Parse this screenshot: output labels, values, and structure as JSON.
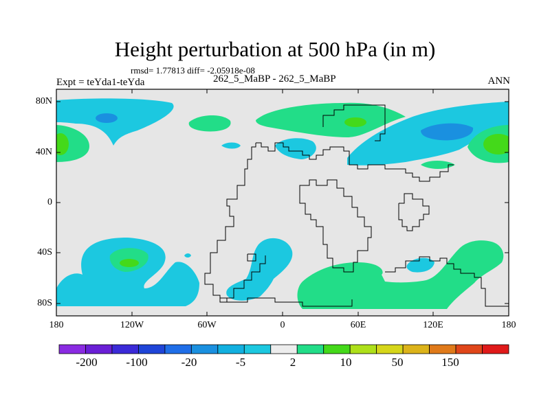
{
  "title": "Height perturbation at 500 hPa (in m)",
  "stats": "rmsd= 1.77813 diff= -2.05918e-08",
  "expt": "Expt = teYda1-teYda",
  "case": "262_5_MaBP - 262_5_MaBP",
  "season": "ANN",
  "lat_labels": [
    "80N",
    "40N",
    "0",
    "40S",
    "80S"
  ],
  "lon_labels": [
    "180",
    "120W",
    "60W",
    "0",
    "60E",
    "120E",
    "180"
  ],
  "colorbar": {
    "colors": [
      "#8a2be2",
      "#6a1fd6",
      "#3b2ad8",
      "#1f45d8",
      "#1f6ee8",
      "#1a90e0",
      "#12b0e0",
      "#1cc8e0",
      "#ededed",
      "#22dd88",
      "#44d91a",
      "#aee01a",
      "#d6d61a",
      "#dcb31a",
      "#e07a1a",
      "#e0461a",
      "#e01a1a"
    ],
    "labels": [
      "-200",
      "-100",
      "-20",
      "-5",
      "2",
      "10",
      "50",
      "150"
    ]
  },
  "colors": {
    "background": "#e6e6e6",
    "cyan": "#1cc8e0",
    "blue": "#1a90e0",
    "green": "#22dd88",
    "lime": "#44d91a"
  }
}
